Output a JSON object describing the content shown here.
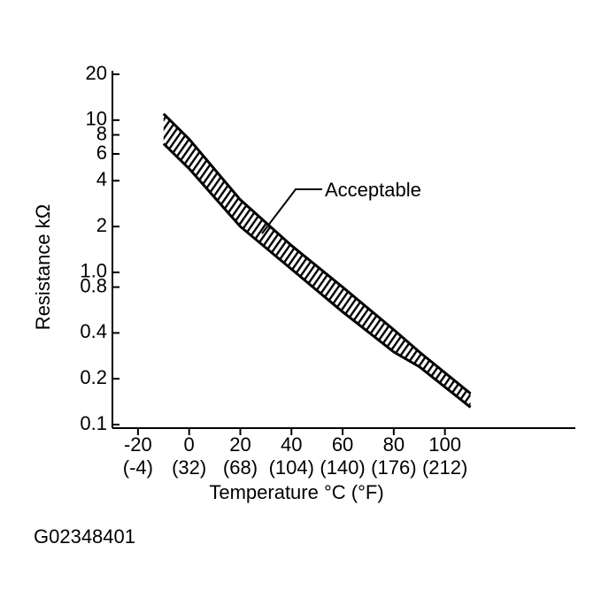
{
  "chart_data": {
    "type": "band",
    "x_label": "Temperature °C (°F)",
    "y_label": "Resistance kΩ",
    "annotation": "Acceptable",
    "figure_code": "G02348401",
    "x": [
      -10,
      0,
      20,
      40,
      60,
      80,
      90,
      110
    ],
    "series": [
      {
        "color": "#000000",
        "values": [
          11,
          7.5,
          3.0,
          1.5,
          0.8,
          0.42,
          0.3,
          0.16
        ]
      },
      {
        "color": "#000000",
        "values": [
          7,
          4.8,
          2.0,
          1.05,
          0.55,
          0.3,
          0.24,
          0.13
        ]
      }
    ],
    "xlim": [
      -30,
      151
    ],
    "xticks": [
      -20,
      0,
      20,
      40,
      60,
      80,
      100
    ],
    "xtick_secondary_labels": [
      "(-4)",
      "(32)",
      "(68)",
      "(104)",
      "(140)",
      "(176)",
      "(212)"
    ],
    "ylim": [
      0.1,
      20
    ],
    "yscale": "log",
    "yticks": [
      0.1,
      0.2,
      0.4,
      0.8,
      {
        "value": 1,
        "label": "1.0"
      },
      2,
      4,
      6,
      8,
      10,
      20
    ],
    "grid": false
  }
}
